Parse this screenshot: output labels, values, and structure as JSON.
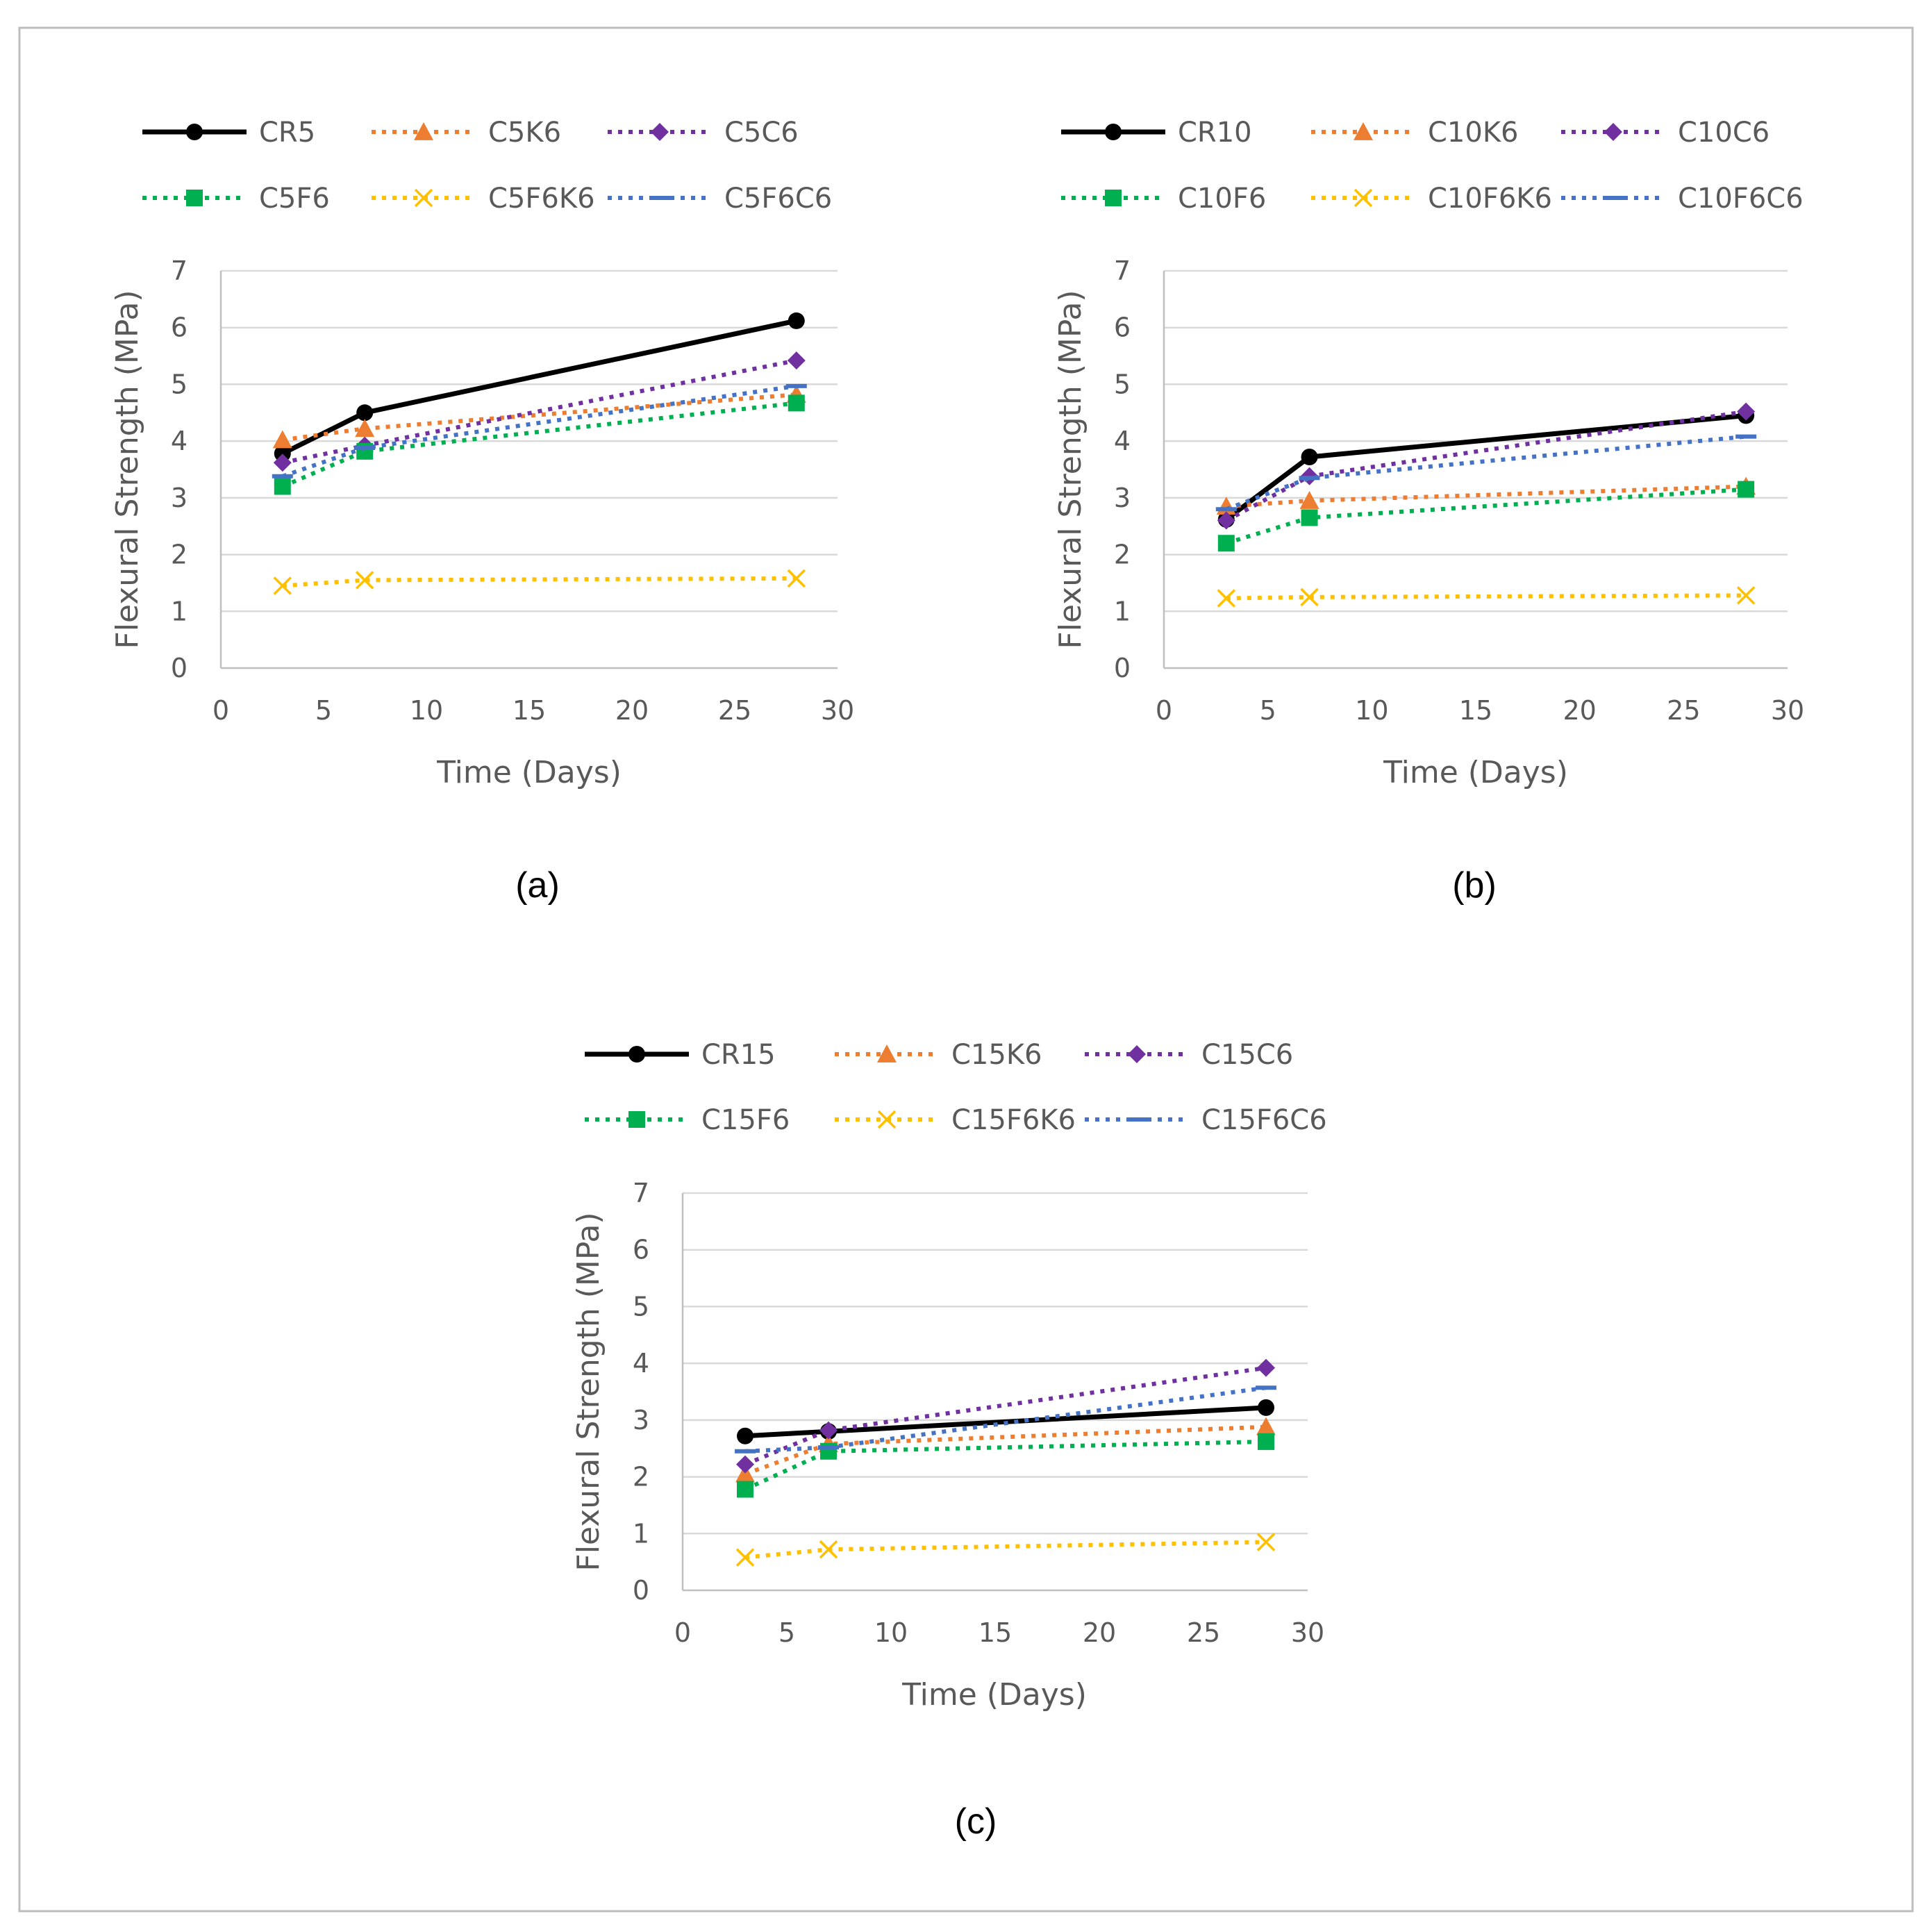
{
  "figure": {
    "frame": true,
    "panels": [
      "(a)",
      "(b)",
      "(c)"
    ]
  },
  "series_colors": {
    "CR": "#000000",
    "K6": "#ed7d31",
    "C6": "#7030a0",
    "F6": "#00b050",
    "F6K6": "#ffc000",
    "F6C6": "#4472c4"
  },
  "chart_data": [
    {
      "type": "line",
      "panel_label": "(a)",
      "xlabel": "Time (Days)",
      "ylabel": "Flexural Strength (MPa)",
      "xlim": [
        0,
        30
      ],
      "ylim": [
        0,
        7
      ],
      "xticks": [
        0,
        5,
        10,
        15,
        20,
        25,
        30
      ],
      "yticks": [
        0,
        1,
        2,
        3,
        4,
        5,
        6,
        7
      ],
      "grid": true,
      "legend": "top",
      "x": [
        3,
        7,
        28
      ],
      "series": [
        {
          "name": "CR5",
          "key": "CR",
          "marker": "circle",
          "dash": "solid",
          "values": [
            3.78,
            4.5,
            6.12
          ]
        },
        {
          "name": "C5K6",
          "key": "K6",
          "marker": "triangle",
          "dash": "dotted",
          "values": [
            4.02,
            4.22,
            4.82
          ]
        },
        {
          "name": "C5C6",
          "key": "C6",
          "marker": "diamond",
          "dash": "dotted",
          "values": [
            3.62,
            3.92,
            5.42
          ]
        },
        {
          "name": "C5F6",
          "key": "F6",
          "marker": "square",
          "dash": "dotted",
          "values": [
            3.2,
            3.82,
            4.67
          ]
        },
        {
          "name": "C5F6K6",
          "key": "F6K6",
          "marker": "x",
          "dash": "dotted",
          "values": [
            1.45,
            1.55,
            1.58
          ]
        },
        {
          "name": "C5F6C6",
          "key": "F6C6",
          "marker": "dash",
          "dash": "dotted",
          "values": [
            3.38,
            3.88,
            4.97
          ]
        }
      ]
    },
    {
      "type": "line",
      "panel_label": "(b)",
      "xlabel": "Time (Days)",
      "ylabel": "Flexural Strength (MPa)",
      "xlim": [
        0,
        30
      ],
      "ylim": [
        0,
        7
      ],
      "xticks": [
        0,
        5,
        10,
        15,
        20,
        25,
        30
      ],
      "yticks": [
        0,
        1,
        2,
        3,
        4,
        5,
        6,
        7
      ],
      "grid": true,
      "legend": "top",
      "x": [
        3,
        7,
        28
      ],
      "series": [
        {
          "name": "CR10",
          "key": "CR",
          "marker": "circle",
          "dash": "solid",
          "values": [
            2.62,
            3.72,
            4.45
          ]
        },
        {
          "name": "C10K6",
          "key": "K6",
          "marker": "triangle",
          "dash": "dotted",
          "values": [
            2.85,
            2.95,
            3.2
          ]
        },
        {
          "name": "C10C6",
          "key": "C6",
          "marker": "diamond",
          "dash": "dotted",
          "values": [
            2.6,
            3.38,
            4.52
          ]
        },
        {
          "name": "C10F6",
          "key": "F6",
          "marker": "square",
          "dash": "dotted",
          "values": [
            2.2,
            2.65,
            3.15
          ]
        },
        {
          "name": "C10F6K6",
          "key": "F6K6",
          "marker": "x",
          "dash": "dotted",
          "values": [
            1.23,
            1.25,
            1.28
          ]
        },
        {
          "name": "C10F6C6",
          "key": "F6C6",
          "marker": "dash",
          "dash": "dotted",
          "values": [
            2.8,
            3.35,
            4.08
          ]
        }
      ]
    },
    {
      "type": "line",
      "panel_label": "(c)",
      "xlabel": "Time (Days)",
      "ylabel": "Flexural Strength (MPa)",
      "xlim": [
        0,
        30
      ],
      "ylim": [
        0,
        7
      ],
      "xticks": [
        0,
        5,
        10,
        15,
        20,
        25,
        30
      ],
      "yticks": [
        0,
        1,
        2,
        3,
        4,
        5,
        6,
        7
      ],
      "grid": true,
      "legend": "top",
      "x": [
        3,
        7,
        28
      ],
      "series": [
        {
          "name": "CR15",
          "key": "CR",
          "marker": "circle",
          "dash": "solid",
          "values": [
            2.72,
            2.8,
            3.22
          ]
        },
        {
          "name": "C15K6",
          "key": "K6",
          "marker": "triangle",
          "dash": "dotted",
          "values": [
            2.05,
            2.58,
            2.88
          ]
        },
        {
          "name": "C15C6",
          "key": "C6",
          "marker": "diamond",
          "dash": "dotted",
          "values": [
            2.22,
            2.82,
            3.92
          ]
        },
        {
          "name": "C15F6",
          "key": "F6",
          "marker": "square",
          "dash": "dotted",
          "values": [
            1.78,
            2.45,
            2.62
          ]
        },
        {
          "name": "C15F6K6",
          "key": "F6K6",
          "marker": "x",
          "dash": "dotted",
          "values": [
            0.58,
            0.72,
            0.85
          ]
        },
        {
          "name": "C15F6C6",
          "key": "F6C6",
          "marker": "dash",
          "dash": "dotted",
          "values": [
            2.45,
            2.52,
            3.57
          ]
        }
      ]
    }
  ]
}
